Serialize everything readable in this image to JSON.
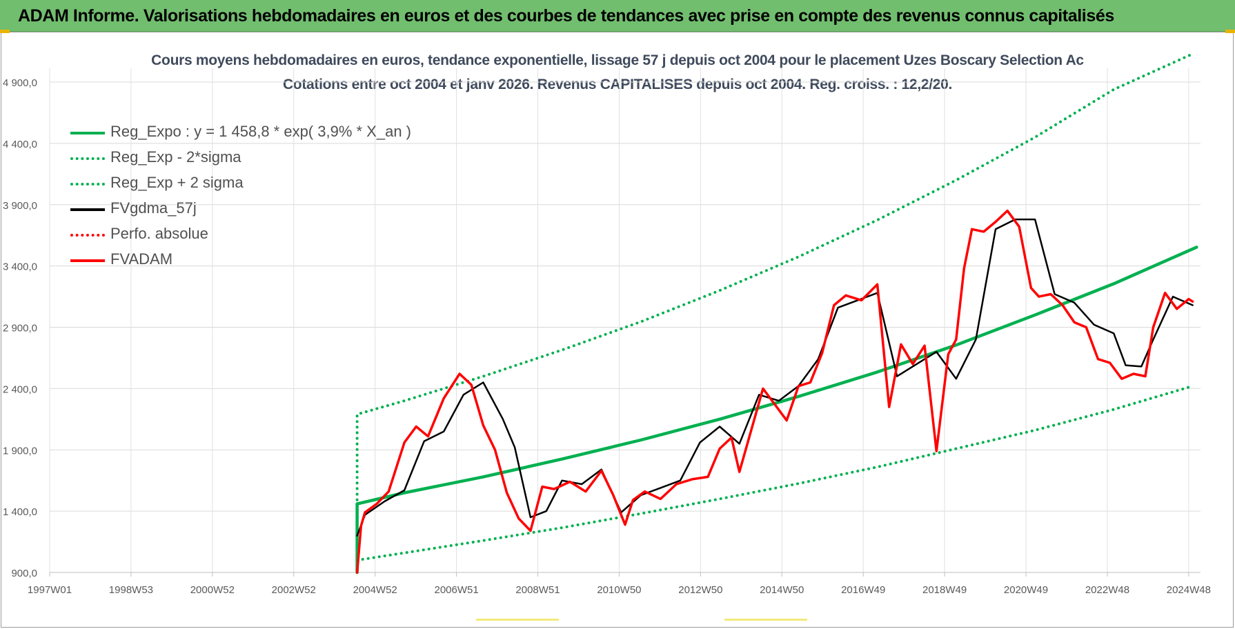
{
  "banner": {
    "title": "ADAM Informe. Valorisations hebdomadaires en euros et des courbes de tendances avec prise en compte des revenus connus capitalisés"
  },
  "chart_data": {
    "type": "line",
    "title": "Cours moyens hebdomadaires en euros, tendance exponentielle, lissage 57 j depuis oct 2004 pour le placement Uzes Boscary Selection Ac",
    "subtitle": "Cotations entre oct 2004 et janv 2026. Revenus CAPITALISES depuis oct 2004. Reg. croiss. : 12,2/20.",
    "x_tick_labels": [
      "1997W01",
      "1998W53",
      "2000W52",
      "2002W52",
      "2004W52",
      "2006W51",
      "2008W51",
      "2010W50",
      "2012W50",
      "2014W50",
      "2016W49",
      "2018W49",
      "2020W49",
      "2022W48",
      "2024W48"
    ],
    "y_tick_labels": [
      "900,0",
      "1 400,0",
      "1 900,0",
      "2 400,0",
      "2 900,0",
      "3 400,0",
      "3 900,0",
      "4 400,0",
      "4 900,0"
    ],
    "ylim": [
      900,
      4900
    ],
    "xlim": [
      1997.0,
      2026.2
    ],
    "grid": true,
    "legend_position": "top-left",
    "colors": {
      "green": "#00b050",
      "black": "#000000",
      "red": "#ff0000"
    },
    "series": [
      {
        "name": "Reg_Expo : y = 1 458,8 * exp( 3,9% *  X_an )",
        "style": "solid",
        "color": "#00b050",
        "x": [
          2004.8,
          2004.8,
          2006,
          2008,
          2010,
          2012,
          2014,
          2016,
          2018,
          2020,
          2022,
          2024,
          2026.1
        ],
        "values": [
          900,
          1459,
          1550,
          1680,
          1825,
          1980,
          2150,
          2335,
          2535,
          2755,
          3000,
          3255,
          3553
        ]
      },
      {
        "name": "Reg_Exp - 2*sigma",
        "style": "dotted",
        "color": "#00b050",
        "x": [
          2004.8,
          2006,
          2008,
          2010,
          2012,
          2014,
          2016,
          2018,
          2020,
          2022,
          2024,
          2026.0
        ],
        "values": [
          1000,
          1060,
          1160,
          1265,
          1380,
          1500,
          1625,
          1760,
          1910,
          2060,
          2230,
          2420
        ]
      },
      {
        "name": "Reg_Exp + 2 sigma",
        "style": "dotted",
        "color": "#00b050",
        "x": [
          2004.8,
          2004.8,
          2006,
          2008,
          2010,
          2012,
          2014,
          2016,
          2018,
          2020,
          2022,
          2024,
          2026.0
        ],
        "values": [
          900,
          2190,
          2300,
          2500,
          2715,
          2945,
          3200,
          3475,
          3775,
          4100,
          4450,
          4840,
          5130
        ]
      },
      {
        "name": "FVgdma_57j",
        "style": "solid",
        "color": "#000000",
        "x": [
          2004.8,
          2005.0,
          2005.5,
          2006.0,
          2006.5,
          2007.0,
          2007.5,
          2008.0,
          2008.5,
          2008.8,
          2009.2,
          2009.6,
          2010.0,
          2010.5,
          2011.0,
          2011.5,
          2012.0,
          2012.5,
          2013.0,
          2013.5,
          2014.0,
          2014.5,
          2015.0,
          2015.5,
          2016.0,
          2016.5,
          2017.0,
          2017.5,
          2018.0,
          2018.5,
          2019.0,
          2019.5,
          2020.0,
          2020.5,
          2021.0,
          2021.5,
          2022.0,
          2022.5,
          2023.0,
          2023.5,
          2024.0,
          2024.3,
          2024.7,
          2025.0,
          2025.5,
          2026.0
        ],
        "values": [
          1200,
          1370,
          1480,
          1570,
          1970,
          2050,
          2350,
          2450,
          2150,
          1920,
          1350,
          1400,
          1650,
          1620,
          1740,
          1390,
          1530,
          1590,
          1650,
          1960,
          2090,
          1950,
          2350,
          2300,
          2420,
          2640,
          3060,
          3120,
          3180,
          2500,
          2600,
          2700,
          2480,
          2800,
          3700,
          3780,
          3780,
          3170,
          3100,
          2920,
          2850,
          2590,
          2580,
          2800,
          3150,
          3080
        ]
      },
      {
        "name": "Perfo. absolue",
        "style": "dotted",
        "color": "#ff0000",
        "x": [],
        "values": []
      },
      {
        "name": "FVADAM",
        "style": "solid",
        "color": "#ff0000",
        "x": [
          2004.8,
          2004.9,
          2005.0,
          2005.3,
          2005.6,
          2006.0,
          2006.3,
          2006.6,
          2007.0,
          2007.4,
          2007.7,
          2008.0,
          2008.3,
          2008.6,
          2008.9,
          2009.2,
          2009.5,
          2009.8,
          2010.2,
          2010.6,
          2011.0,
          2011.3,
          2011.6,
          2011.8,
          2012.1,
          2012.5,
          2012.9,
          2013.3,
          2013.7,
          2014.0,
          2014.3,
          2014.5,
          2014.8,
          2015.1,
          2015.4,
          2015.7,
          2016.0,
          2016.3,
          2016.6,
          2016.9,
          2017.2,
          2017.6,
          2018.0,
          2018.3,
          2018.6,
          2018.9,
          2019.2,
          2019.5,
          2019.8,
          2020.0,
          2020.2,
          2020.4,
          2020.7,
          2021.0,
          2021.3,
          2021.6,
          2021.9,
          2022.1,
          2022.4,
          2022.7,
          2023.0,
          2023.3,
          2023.6,
          2023.9,
          2024.2,
          2024.5,
          2024.8,
          2025.0,
          2025.3,
          2025.6,
          2025.9,
          2026.0
        ],
        "values": [
          900,
          1280,
          1390,
          1460,
          1560,
          1960,
          2090,
          2010,
          2320,
          2520,
          2430,
          2100,
          1900,
          1550,
          1340,
          1240,
          1600,
          1580,
          1640,
          1560,
          1730,
          1530,
          1290,
          1490,
          1560,
          1500,
          1620,
          1660,
          1680,
          1910,
          2000,
          1720,
          2060,
          2400,
          2270,
          2140,
          2420,
          2450,
          2690,
          3080,
          3160,
          3120,
          3250,
          2250,
          2760,
          2600,
          2750,
          1890,
          2680,
          2800,
          3380,
          3700,
          3680,
          3760,
          3850,
          3720,
          3220,
          3150,
          3170,
          3080,
          2940,
          2900,
          2640,
          2610,
          2480,
          2520,
          2500,
          2900,
          3180,
          3050,
          3130,
          3110
        ]
      }
    ]
  }
}
